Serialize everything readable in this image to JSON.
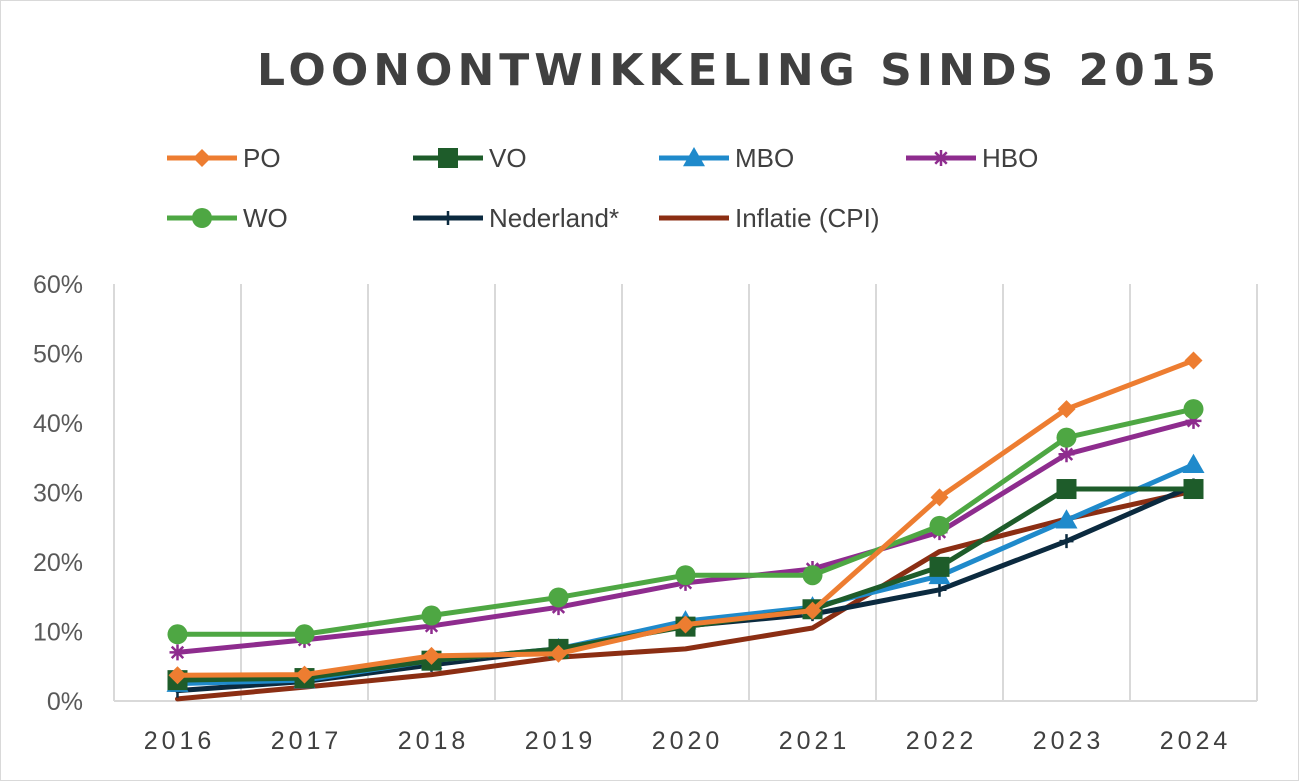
{
  "chart_data": {
    "type": "line",
    "title": "LOONONTWIKKELING SINDS 2015",
    "x": [
      "2016",
      "2017",
      "2018",
      "2019",
      "2020",
      "2021",
      "2022",
      "2023",
      "2024"
    ],
    "ylim": [
      0,
      60
    ],
    "yticks": [
      0,
      10,
      20,
      30,
      40,
      50,
      60
    ],
    "ytick_labels": [
      "0%",
      "10%",
      "20%",
      "30%",
      "40%",
      "50%",
      "60%"
    ],
    "grid": "vertical",
    "legend_position": "top",
    "series": [
      {
        "name": "PO",
        "color": "#ED7D31",
        "marker": "diamond",
        "values": [
          3.7,
          3.8,
          6.5,
          6.8,
          11.0,
          13.0,
          29.3,
          42.0,
          49.0
        ]
      },
      {
        "name": "VO",
        "color": "#1E5C2A",
        "marker": "square",
        "values": [
          3.0,
          3.3,
          5.8,
          7.5,
          10.7,
          13.2,
          19.3,
          30.5,
          30.5
        ]
      },
      {
        "name": "MBO",
        "color": "#1F8ACB",
        "marker": "triangle",
        "values": [
          2.5,
          3.0,
          5.8,
          7.5,
          11.5,
          13.5,
          18.0,
          26.0,
          34.0
        ]
      },
      {
        "name": "HBO",
        "color": "#8E2C8E",
        "marker": "star",
        "values": [
          7.0,
          8.8,
          10.8,
          13.5,
          17.0,
          19.0,
          24.3,
          35.5,
          40.3
        ]
      },
      {
        "name": "WO",
        "color": "#4EA743",
        "marker": "circle",
        "values": [
          9.6,
          9.6,
          12.3,
          14.9,
          18.1,
          18.1,
          25.2,
          37.9,
          42.0
        ]
      },
      {
        "name": "Nederland*",
        "color": "#0B2A3F",
        "marker": "plus",
        "values": [
          1.5,
          2.8,
          5.2,
          7.4,
          10.8,
          12.5,
          16.0,
          23.0,
          31.0
        ]
      },
      {
        "name": "Inflatie (CPI)",
        "color": "#8B2E13",
        "marker": "none",
        "values": [
          0.3,
          2.0,
          3.8,
          6.3,
          7.5,
          10.5,
          21.5,
          26.2,
          30.2
        ]
      }
    ]
  }
}
